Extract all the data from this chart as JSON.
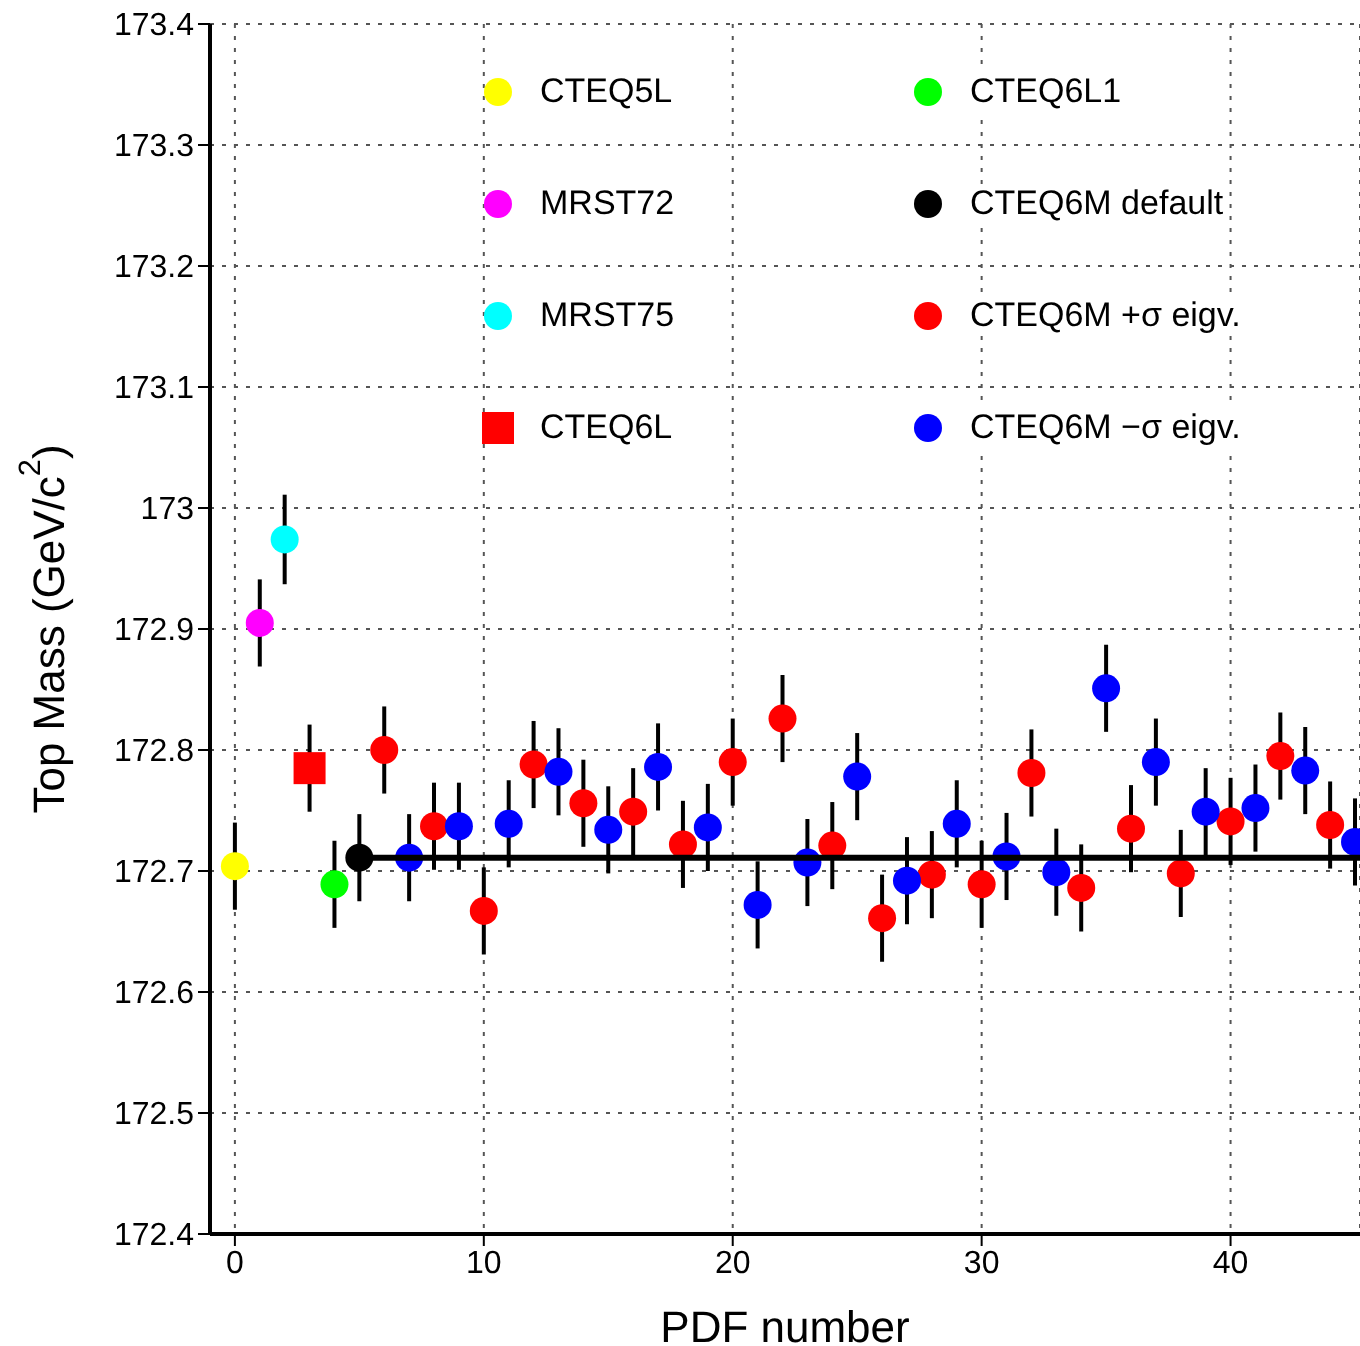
{
  "chart_data": {
    "type": "scatter",
    "xlabel": "PDF number",
    "ylabel": "Top Mass (GeV/c$^{2}$)",
    "xlim": [
      -1,
      45.2
    ],
    "xticks": [
      0,
      10,
      20,
      30,
      40
    ],
    "ylim": [
      172.4,
      173.4
    ],
    "yticks": [
      172.4,
      172.5,
      172.6,
      172.7,
      172.8,
      172.9,
      173,
      173.1,
      173.2,
      173.3,
      173.4
    ],
    "grid": true,
    "legend": "top right",
    "marker": "circle",
    "series": [
      {
        "name": "CTEQ5L",
        "color": "#ffff00",
        "x": [
          0
        ],
        "values": [
          172.704
        ],
        "errors": [
          0.036
        ]
      },
      {
        "name": "MRST72",
        "color": "#ff00ff",
        "x": [
          1
        ],
        "values": [
          172.905
        ],
        "errors": [
          0.036
        ]
      },
      {
        "name": "MRST75",
        "color": "#00ffff",
        "x": [
          2
        ],
        "values": [
          172.974
        ],
        "errors": [
          0.037
        ]
      },
      {
        "name": "CTEQ6L",
        "color": "#ff0000",
        "marker": "square",
        "x": [
          3
        ],
        "values": [
          172.785
        ],
        "errors": [
          0.036
        ]
      },
      {
        "name": "CTEQ6L1",
        "color": "#00ff00",
        "x": [
          4
        ],
        "values": [
          172.689
        ],
        "errors": [
          0.036
        ]
      },
      {
        "name": "CTEQ6M default",
        "color": "#000000",
        "x": [
          5
        ],
        "values": [
          172.711
        ],
        "errors": [
          0.036
        ]
      },
      {
        "name": "CTEQ6M +σ eigv.",
        "color": "#ff0000",
        "x": [
          6,
          8,
          10,
          12,
          14,
          16,
          18,
          20,
          22,
          24,
          26,
          28,
          30,
          32,
          34,
          36,
          38,
          40,
          42,
          44
        ],
        "values": [
          172.8,
          172.737,
          172.667,
          172.788,
          172.756,
          172.749,
          172.722,
          172.79,
          172.826,
          172.721,
          172.661,
          172.697,
          172.689,
          172.781,
          172.686,
          172.735,
          172.698,
          172.741,
          172.795,
          172.738
        ],
        "errors": [
          0.036,
          0.036,
          0.036,
          0.036,
          0.036,
          0.036,
          0.036,
          0.036,
          0.036,
          0.036,
          0.036,
          0.036,
          0.036,
          0.036,
          0.036,
          0.036,
          0.036,
          0.036,
          0.036,
          0.036
        ]
      },
      {
        "name": "CTEQ6M −σ eigv.",
        "color": "#0000ff",
        "x": [
          7,
          9,
          11,
          13,
          15,
          17,
          19,
          21,
          23,
          25,
          27,
          29,
          31,
          33,
          35,
          37,
          39,
          41,
          43,
          45
        ],
        "values": [
          172.711,
          172.737,
          172.739,
          172.782,
          172.734,
          172.786,
          172.736,
          172.672,
          172.707,
          172.778,
          172.692,
          172.739,
          172.712,
          172.699,
          172.851,
          172.79,
          172.749,
          172.752,
          172.783,
          172.724
        ],
        "errors": [
          0.036,
          0.036,
          0.036,
          0.036,
          0.036,
          0.036,
          0.036,
          0.036,
          0.036,
          0.036,
          0.036,
          0.036,
          0.036,
          0.036,
          0.036,
          0.036,
          0.036,
          0.036,
          0.036,
          0.036
        ]
      },
      {
        "type": "line",
        "marker": "none",
        "color": "#000000",
        "x": [
          5,
          45.2
        ],
        "values": [
          172.711,
          172.711
        ]
      }
    ]
  }
}
